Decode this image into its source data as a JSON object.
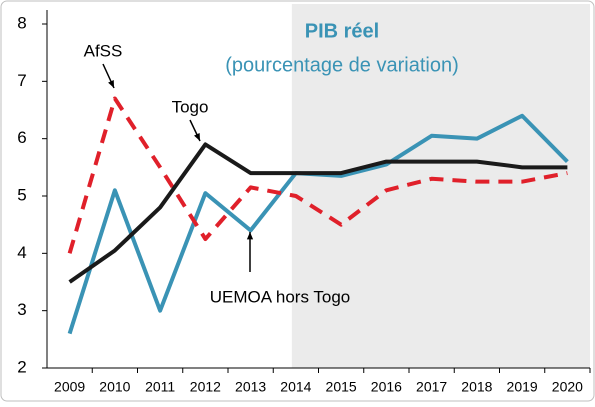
{
  "chart_data": {
    "type": "line",
    "title": "PIB réel",
    "subtitle": "(pourcentage de variation)",
    "categories": [
      "2009",
      "2010",
      "2011",
      "2012",
      "2013",
      "2014",
      "2015",
      "2016",
      "2017",
      "2018",
      "2019",
      "2020"
    ],
    "series": [
      {
        "name": "UEMOA hors Togo",
        "color": "#3a93b5",
        "dashed": false,
        "values": [
          2.6,
          5.1,
          3.0,
          5.05,
          4.4,
          5.4,
          5.35,
          5.55,
          6.05,
          6.0,
          6.4,
          5.6
        ]
      },
      {
        "name": "AfSS",
        "color": "#e0202a",
        "dashed": true,
        "values": [
          4.0,
          6.7,
          5.5,
          4.25,
          5.15,
          5.0,
          4.5,
          5.1,
          5.3,
          5.25,
          5.25,
          5.4
        ]
      },
      {
        "name": "Togo",
        "color": "#1a1a1a",
        "dashed": false,
        "values": [
          3.5,
          4.05,
          4.8,
          5.9,
          5.4,
          5.4,
          5.4,
          5.6,
          5.6,
          5.6,
          5.5,
          5.5
        ]
      }
    ],
    "ylim": [
      2,
      8
    ],
    "yticks": [
      2,
      3,
      4,
      5,
      6,
      7,
      8
    ],
    "grid": false,
    "shaded_from": "2014"
  }
}
